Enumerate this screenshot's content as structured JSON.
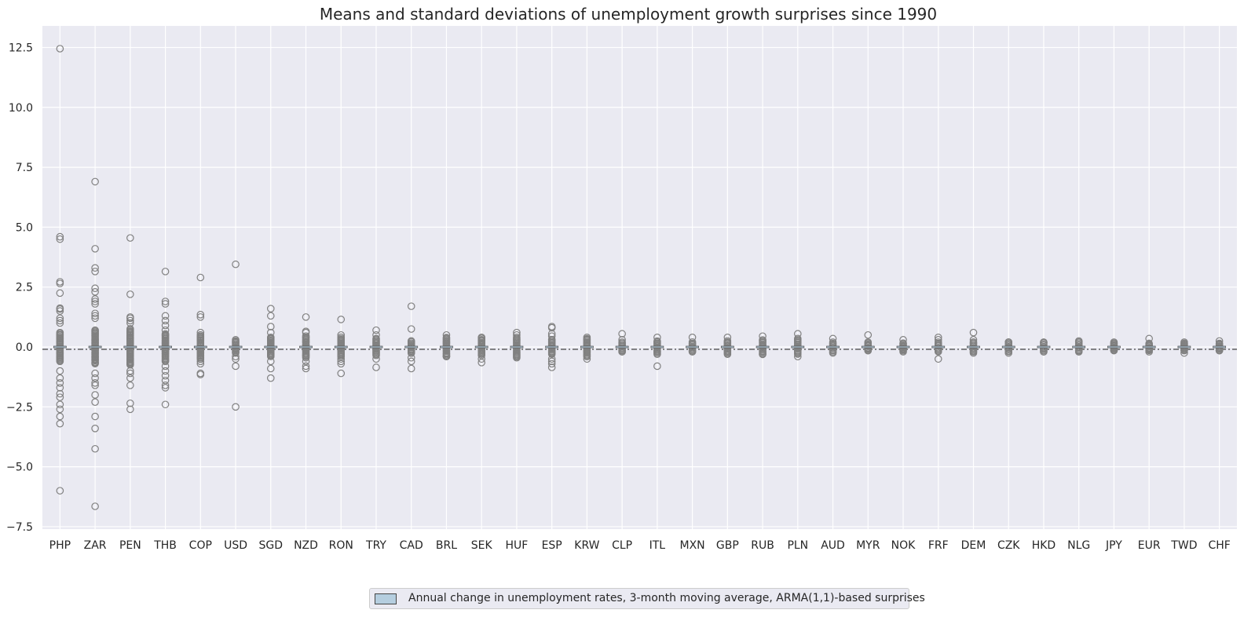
{
  "chart_data": {
    "type": "box",
    "title": "Means and standard deviations of unemployment growth surprises since 1990",
    "xlabel": "",
    "ylabel": "",
    "ylim": [
      -7.6,
      13.4
    ],
    "yticks": [
      "-7.5",
      "-5.0",
      "-2.5",
      "0.0",
      "2.5",
      "5.0",
      "7.5",
      "10.0",
      "12.5"
    ],
    "grid": true,
    "reference_line_y": 0,
    "colors": {
      "background": "#eaeaf2",
      "grid": "#ffffff",
      "marker": "#808080",
      "box_fill": "#b5cedf"
    },
    "legend": {
      "placement": "bottom-center",
      "label": "Annual change in unemployment rates, 3-month moving average, ARMA(1,1)-based surprises"
    },
    "categories": [
      "PHP",
      "ZAR",
      "PEN",
      "THB",
      "COP",
      "USD",
      "SGD",
      "NZD",
      "RON",
      "TRY",
      "CAD",
      "BRL",
      "SEK",
      "HUF",
      "ESP",
      "KRW",
      "CLP",
      "ITL",
      "MXN",
      "GBP",
      "RUB",
      "PLN",
      "AUD",
      "MYR",
      "NOK",
      "FRF",
      "DEM",
      "CZK",
      "HKD",
      "NLG",
      "JPY",
      "EUR",
      "TWD",
      "CHF"
    ],
    "spread": [
      0.6,
      0.7,
      0.75,
      0.55,
      0.5,
      0.25,
      0.4,
      0.45,
      0.4,
      0.35,
      0.25,
      0.4,
      0.35,
      0.4,
      0.3,
      0.35,
      0.2,
      0.25,
      0.2,
      0.25,
      0.3,
      0.3,
      0.2,
      0.15,
      0.15,
      0.2,
      0.2,
      0.2,
      0.2,
      0.2,
      0.15,
      0.15,
      0.15,
      0.15
    ],
    "outliers": [
      [
        12.45,
        4.6,
        4.5,
        2.72,
        2.65,
        2.25,
        1.62,
        1.58,
        1.5,
        1.2,
        1.1,
        1.0,
        -1.0,
        -1.3,
        -1.5,
        -1.7,
        -1.95,
        -2.1,
        -2.4,
        -2.6,
        -2.9,
        -3.2,
        -6.0
      ],
      [
        6.9,
        4.1,
        3.3,
        3.15,
        2.45,
        2.3,
        2.0,
        1.9,
        1.8,
        1.4,
        1.3,
        1.2,
        -1.1,
        -1.3,
        -1.5,
        -1.6,
        -2.0,
        -2.3,
        -2.9,
        -3.4,
        -4.25,
        -6.65
      ],
      [
        4.55,
        2.2,
        1.25,
        1.2,
        1.1,
        1.0,
        -1.0,
        -1.1,
        -1.3,
        -1.6,
        -2.35,
        -2.6
      ],
      [
        3.15,
        1.9,
        1.8,
        1.3,
        1.1,
        0.9,
        0.7,
        -0.6,
        -0.8,
        -1.0,
        -1.2,
        -1.4,
        -1.6,
        -1.7,
        -2.4
      ],
      [
        2.9,
        1.35,
        1.25,
        0.6,
        -0.6,
        -0.7,
        -1.1,
        -1.15
      ],
      [
        3.45,
        0.3,
        -0.4,
        -0.5,
        -0.8,
        -2.5
      ],
      [
        1.6,
        1.3,
        0.85,
        0.6,
        -0.6,
        -0.9,
        -1.3
      ],
      [
        1.25,
        0.65,
        0.6,
        -0.6,
        -0.8,
        -0.9
      ],
      [
        1.15,
        0.5,
        -0.5,
        -0.6,
        -0.7,
        -1.1
      ],
      [
        0.7,
        0.5,
        -0.5,
        -0.85
      ],
      [
        1.7,
        0.75,
        -0.45,
        -0.6,
        -0.9
      ],
      [
        0.5,
        -0.4
      ],
      [
        0.4,
        -0.5,
        -0.65
      ],
      [
        0.6,
        0.5,
        -0.45
      ],
      [
        0.85,
        0.8,
        0.55,
        0.45,
        -0.5,
        -0.6,
        -0.7,
        -0.85
      ],
      [
        0.4,
        -0.4,
        -0.5
      ],
      [
        0.55,
        0.3,
        -0.2
      ],
      [
        0.4,
        -0.3,
        -0.8
      ],
      [
        0.4,
        -0.2
      ],
      [
        0.4,
        -0.3
      ],
      [
        0.45,
        -0.3
      ],
      [
        0.55,
        0.35,
        -0.4
      ],
      [
        0.35,
        -0.25
      ],
      [
        0.5,
        0.2,
        -0.15
      ],
      [
        0.3,
        -0.2
      ],
      [
        0.4,
        0.3,
        -0.5
      ],
      [
        0.6,
        0.3,
        -0.25
      ],
      [
        0.2,
        -0.25
      ],
      [
        0.2,
        -0.2
      ],
      [
        0.25,
        -0.15
      ],
      [
        0.2,
        -0.15
      ],
      [
        0.35,
        -0.2
      ],
      [
        0.2,
        -0.25
      ],
      [
        0.25,
        -0.15
      ]
    ]
  }
}
